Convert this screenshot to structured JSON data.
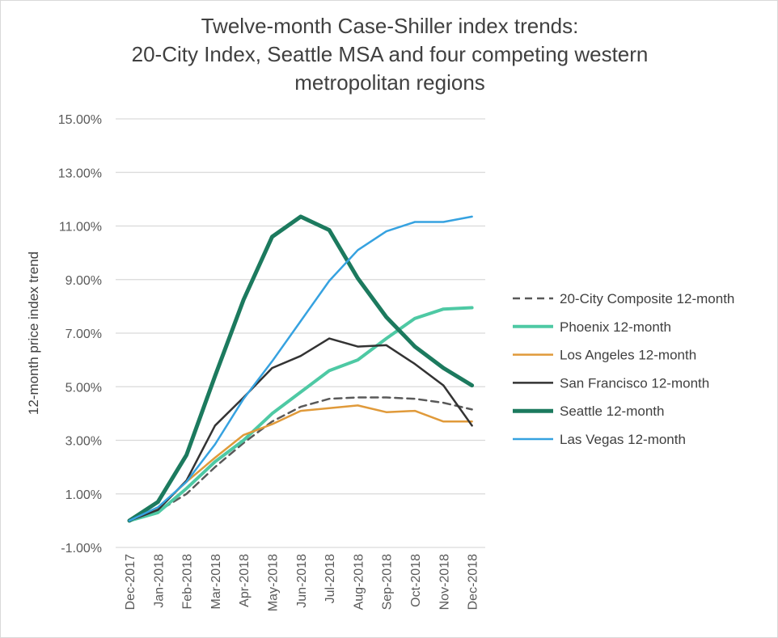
{
  "chart_data": {
    "type": "line",
    "title_lines": [
      "Twelve-month Case-Shiller index trends:",
      "20-City Index, Seattle MSA and four competing western",
      "metropolitan regions"
    ],
    "xlabel": "",
    "ylabel": "12-month price index trend",
    "ylim": [
      -1,
      15
    ],
    "yticks": [
      "-1.00%",
      "1.00%",
      "3.00%",
      "5.00%",
      "7.00%",
      "9.00%",
      "11.00%",
      "13.00%",
      "15.00%"
    ],
    "ytick_values": [
      -1,
      1,
      3,
      5,
      7,
      9,
      11,
      13,
      15
    ],
    "grid": true,
    "legend_position": "right",
    "categories": [
      "Dec-2017",
      "Jan-2018",
      "Feb-2018",
      "Mar-2018",
      "Apr-2018",
      "May-2018",
      "Jun-2018",
      "Jul-2018",
      "Aug-2018",
      "Sep-2018",
      "Oct-2018",
      "Nov-2018",
      "Dec-2018"
    ],
    "series": [
      {
        "name": "20-City Composite 12-month",
        "color": "#595959",
        "width": 2.5,
        "dash": "9,6",
        "values": [
          0,
          0.35,
          1.0,
          2.0,
          2.9,
          3.7,
          4.25,
          4.55,
          4.6,
          4.6,
          4.55,
          4.4,
          4.15
        ]
      },
      {
        "name": "Phoenix  12-month",
        "color": "#4ec9a4",
        "width": 4,
        "dash": "",
        "values": [
          0,
          0.3,
          1.2,
          2.2,
          3.0,
          4.0,
          4.8,
          5.6,
          6.0,
          6.8,
          7.55,
          7.9,
          7.95
        ]
      },
      {
        "name": "Los Angeles 12-month",
        "color": "#e09a3a",
        "width": 2.5,
        "dash": "",
        "values": [
          0,
          0.45,
          1.45,
          2.35,
          3.2,
          3.6,
          4.1,
          4.2,
          4.3,
          4.05,
          4.1,
          3.7,
          3.7
        ]
      },
      {
        "name": "San Francisco 12-month",
        "color": "#333333",
        "width": 2.5,
        "dash": "",
        "values": [
          0,
          0.4,
          1.5,
          3.55,
          4.6,
          5.7,
          6.15,
          6.8,
          6.5,
          6.55,
          5.85,
          5.05,
          3.55
        ]
      },
      {
        "name": "Seattle 12-month",
        "color": "#1c7a5e",
        "width": 5,
        "dash": "",
        "values": [
          0,
          0.7,
          2.45,
          5.4,
          8.25,
          10.6,
          11.35,
          10.85,
          9.05,
          7.6,
          6.5,
          5.7,
          5.05
        ]
      },
      {
        "name": "Las Vegas 12-month",
        "color": "#36a2e0",
        "width": 2.5,
        "dash": "",
        "values": [
          0,
          0.5,
          1.45,
          2.85,
          4.55,
          5.95,
          7.45,
          8.95,
          10.1,
          10.8,
          11.15,
          11.15,
          11.35
        ]
      }
    ]
  }
}
